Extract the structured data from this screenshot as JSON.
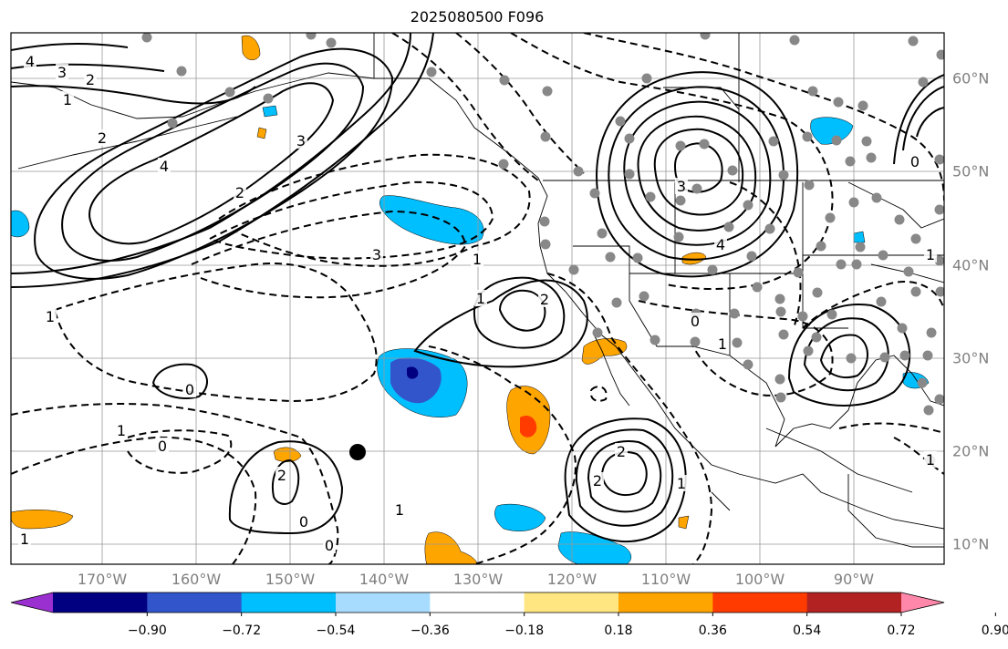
{
  "title": "2025080500 F096",
  "longitude_labels": [
    "170°W",
    "160°W",
    "150°W",
    "140°W",
    "130°W",
    "120°W",
    "110°W",
    "100°W",
    "90°W"
  ],
  "latitude_labels": [
    "60°N",
    "50°N",
    "40°N",
    "30°N",
    "20°N",
    "10°N"
  ],
  "colorbar": {
    "ticks": [
      "−0.90",
      "−0.72",
      "−0.54",
      "−0.36",
      "−0.18",
      "0.18",
      "0.36",
      "0.54",
      "0.72",
      "0.90"
    ],
    "colors": [
      "#9b30d0",
      "#000080",
      "#3355cc",
      "#00bfff",
      "#a8dcff",
      "#ffffff",
      "#ffe680",
      "#ffa500",
      "#ff3b00",
      "#b22222",
      "#ff88aa"
    ]
  },
  "contour_labels": [
    "4",
    "3",
    "2",
    "1",
    "2",
    "3",
    "4",
    "2",
    "3",
    "1",
    "0",
    "2",
    "1",
    "3",
    "4",
    "1",
    "1",
    "0",
    "2",
    "1",
    "0",
    "0",
    "1",
    "1",
    "0",
    "1",
    "2",
    "2",
    "0",
    "1",
    "1"
  ],
  "map_markers": {
    "black_dot": "storm-center"
  }
}
